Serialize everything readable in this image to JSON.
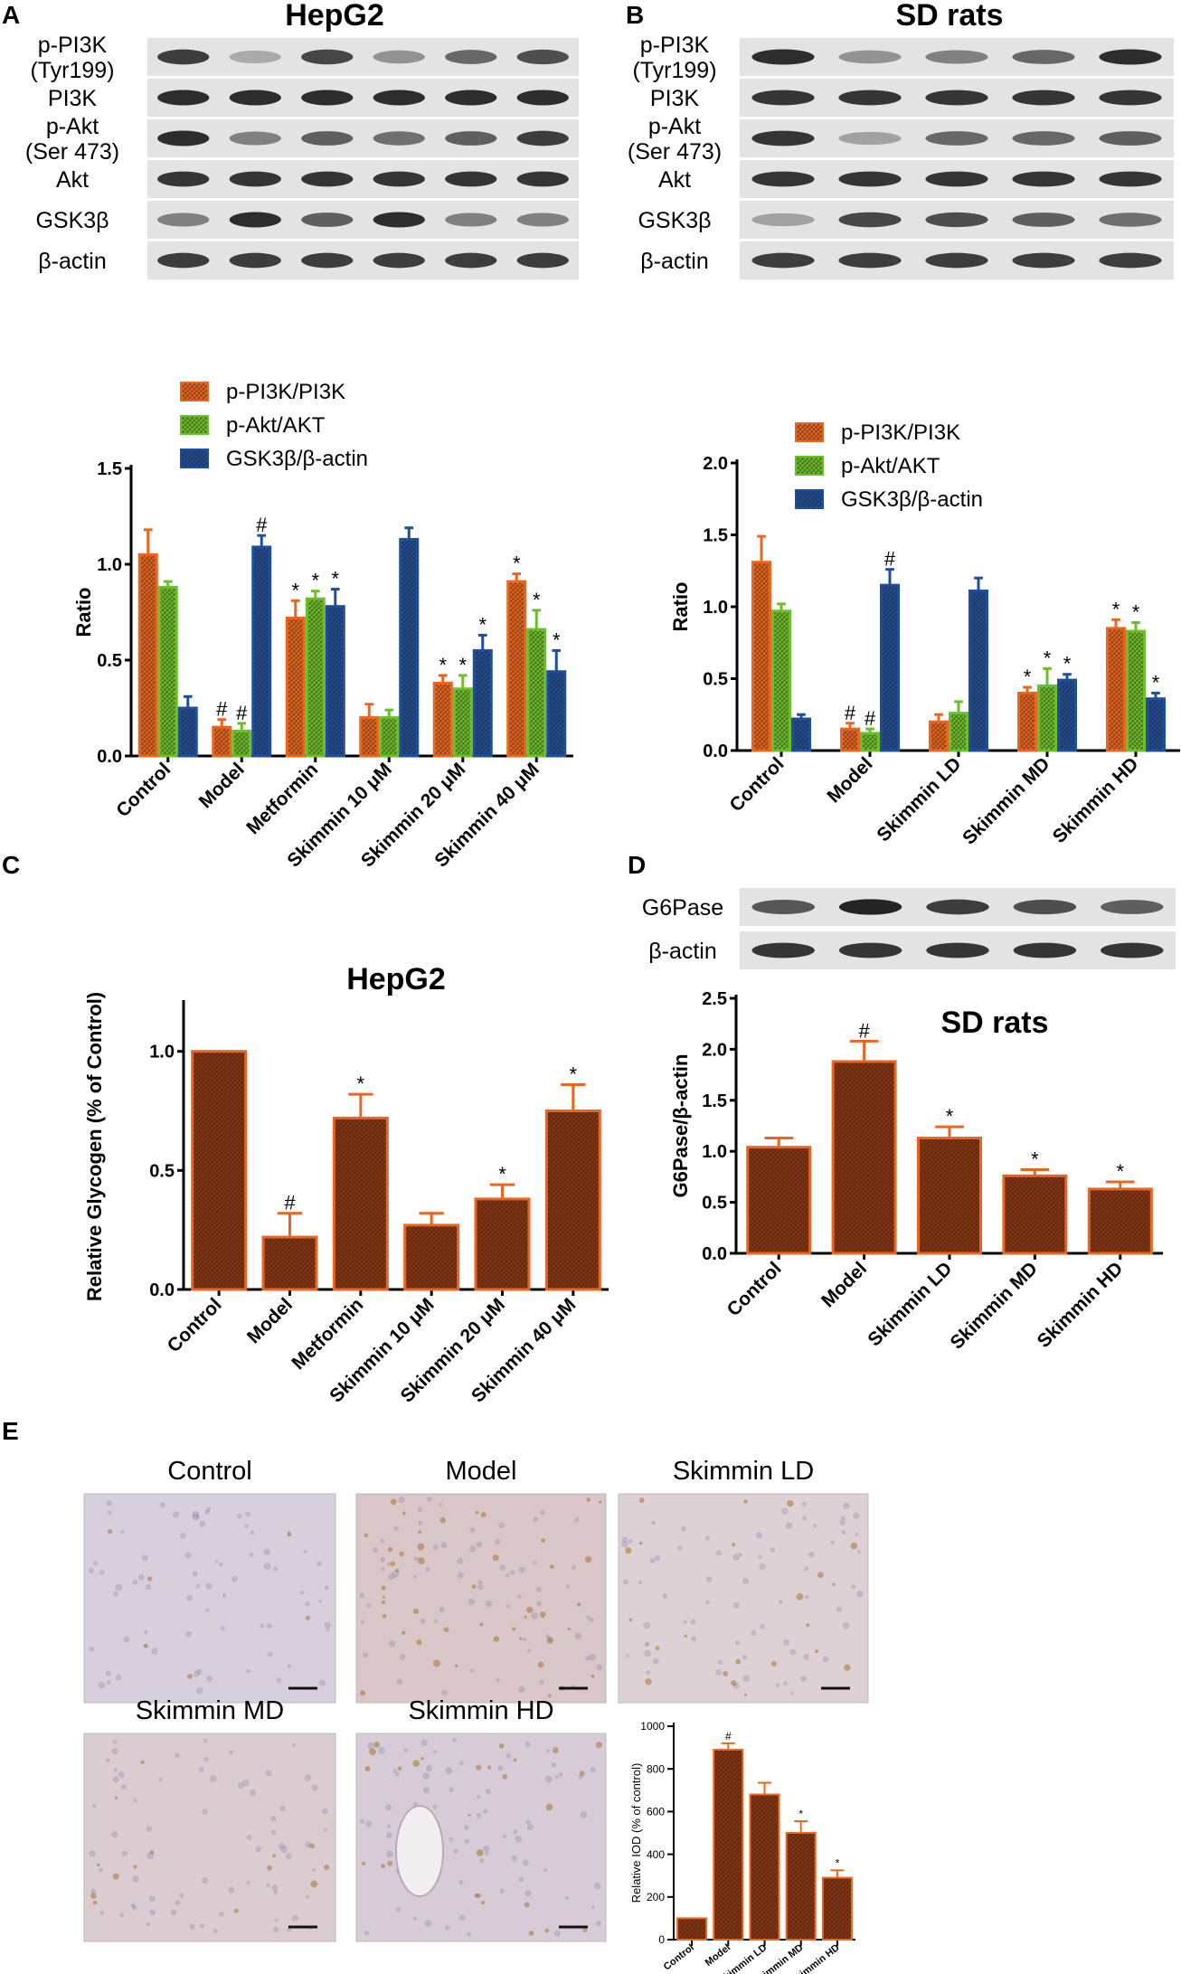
{
  "panels": {
    "A": {
      "letter": "A",
      "title": "HepG2",
      "blot_labels": [
        "p-PI3K\n(Tyr199)",
        "PI3K",
        "p-Akt\n(Ser 473)",
        "Akt",
        "GSK3β",
        "β-actin"
      ]
    },
    "B": {
      "letter": "B",
      "title": "SD rats",
      "blot_labels": [
        "p-PI3K\n(Tyr199)",
        "PI3K",
        "p-Akt\n(Ser 473)",
        "Akt",
        "GSK3β",
        "β-actin"
      ]
    },
    "C": {
      "letter": "C"
    },
    "D": {
      "letter": "D",
      "blot_labels": [
        "G6Pase",
        "β-actin"
      ]
    },
    "E": {
      "letter": "E",
      "micrographs": [
        "Control",
        "Model",
        "Skimmin LD",
        "Skimmin MD",
        "Skimmin HD"
      ]
    }
  },
  "colors": {
    "orange": "#e8661f",
    "green": "#6bbf2a",
    "blue": "#1d4f9c",
    "brown": "#8a3512",
    "tissue": "#d9ccd6"
  },
  "chart_data": [
    {
      "id": "A",
      "type": "bar",
      "title": "",
      "xlabel": "",
      "ylabel": "Ratio",
      "ylim": [
        0,
        1.5
      ],
      "yticks": [
        "0.0",
        "0.5",
        "1.0",
        "1.5"
      ],
      "categories": [
        "Control",
        "Model",
        "Metformin",
        "Skimmin 10 μM",
        "Skimmin 20 μM",
        "Skimmin 40 μM"
      ],
      "legend_position": "top",
      "series": [
        {
          "name": "p-PI3K/PI3K",
          "color": "orange",
          "values": [
            1.05,
            0.15,
            0.72,
            0.2,
            0.38,
            0.91
          ],
          "errors": [
            0.13,
            0.04,
            0.09,
            0.07,
            0.04,
            0.04
          ],
          "marks": [
            "",
            "#",
            "*",
            "",
            "*",
            "*"
          ]
        },
        {
          "name": "p-Akt/AKT",
          "color": "green",
          "values": [
            0.88,
            0.13,
            0.82,
            0.2,
            0.35,
            0.66
          ],
          "errors": [
            0.03,
            0.04,
            0.04,
            0.04,
            0.07,
            0.1
          ],
          "marks": [
            "",
            "#",
            "*",
            "",
            "*",
            "*"
          ]
        },
        {
          "name": "GSK3β/β-actin",
          "color": "blue",
          "values": [
            0.25,
            1.09,
            0.78,
            1.13,
            0.55,
            0.44
          ],
          "errors": [
            0.06,
            0.06,
            0.09,
            0.06,
            0.08,
            0.11
          ],
          "marks": [
            "",
            "#",
            "*",
            "",
            "*",
            "*"
          ]
        }
      ]
    },
    {
      "id": "B",
      "type": "bar",
      "title": "",
      "xlabel": "",
      "ylabel": "Ratio",
      "ylim": [
        0,
        2.0
      ],
      "yticks": [
        "0.0",
        "0.5",
        "1.0",
        "1.5",
        "2.0"
      ],
      "categories": [
        "Control",
        "Model",
        "Skimmin LD",
        "Skimmin MD",
        "Skimmin HD"
      ],
      "legend_position": "top",
      "series": [
        {
          "name": "p-PI3K/PI3K",
          "color": "orange",
          "values": [
            1.31,
            0.15,
            0.2,
            0.4,
            0.85
          ],
          "errors": [
            0.18,
            0.04,
            0.05,
            0.04,
            0.06
          ],
          "marks": [
            "",
            "#",
            "",
            "*",
            "*"
          ]
        },
        {
          "name": "p-Akt/AKT",
          "color": "green",
          "values": [
            0.97,
            0.12,
            0.26,
            0.45,
            0.83
          ],
          "errors": [
            0.05,
            0.03,
            0.08,
            0.12,
            0.06
          ],
          "marks": [
            "",
            "#",
            "",
            "*",
            "*"
          ]
        },
        {
          "name": "GSK3β/β-actin",
          "color": "blue",
          "values": [
            0.22,
            1.15,
            1.11,
            0.49,
            0.36
          ],
          "errors": [
            0.03,
            0.11,
            0.09,
            0.04,
            0.04
          ],
          "marks": [
            "",
            "#",
            "",
            "*",
            "*"
          ]
        }
      ]
    },
    {
      "id": "C",
      "type": "bar",
      "title": "HepG2",
      "xlabel": "",
      "ylabel": "Relative Glycogen (% of  Control)",
      "ylim": [
        0,
        1.2
      ],
      "yticks": [
        "0.0",
        "0.5",
        "1.0"
      ],
      "categories": [
        "Control",
        "Model",
        "Metformin",
        "Skimmin 10 μM",
        "Skimmin 20 μM",
        "Skimmin 40 μM"
      ],
      "series": [
        {
          "name": "Relative Glycogen",
          "color": "orange",
          "values": [
            1.0,
            0.22,
            0.72,
            0.27,
            0.38,
            0.75
          ],
          "errors": [
            0.0,
            0.1,
            0.1,
            0.05,
            0.06,
            0.11
          ],
          "marks": [
            "",
            "#",
            "*",
            "",
            "*",
            "*"
          ]
        }
      ]
    },
    {
      "id": "D",
      "type": "bar",
      "title": "SD rats",
      "xlabel": "",
      "ylabel": "G6Pase/β-actin",
      "ylim": [
        0,
        2.5
      ],
      "yticks": [
        "0.0",
        "0.5",
        "1.0",
        "1.5",
        "2.0",
        "2.5"
      ],
      "categories": [
        "Control",
        "Model",
        "Skimmin LD",
        "Skimmin MD",
        "Skimmin HD"
      ],
      "series": [
        {
          "name": "G6Pase/β-actin",
          "color": "orange",
          "values": [
            1.04,
            1.88,
            1.13,
            0.76,
            0.63
          ],
          "errors": [
            0.09,
            0.2,
            0.11,
            0.06,
            0.07
          ],
          "marks": [
            "",
            "#",
            "*",
            "*",
            "*"
          ]
        }
      ]
    },
    {
      "id": "E",
      "type": "bar",
      "title": "",
      "xlabel": "",
      "ylabel": "Relative IOD (% of control)",
      "ylim": [
        0,
        1000
      ],
      "yticks": [
        "0",
        "200",
        "400",
        "600",
        "800",
        "1000"
      ],
      "categories": [
        "Control",
        "Model",
        "Skimmin LD",
        "Skimmin MD",
        "Skimmin HD"
      ],
      "series": [
        {
          "name": "Relative IOD",
          "color": "orange",
          "values": [
            100,
            890,
            680,
            500,
            290
          ],
          "errors": [
            0,
            30,
            55,
            55,
            35
          ],
          "marks": [
            "",
            "#",
            "",
            "*",
            "*"
          ]
        }
      ]
    }
  ]
}
